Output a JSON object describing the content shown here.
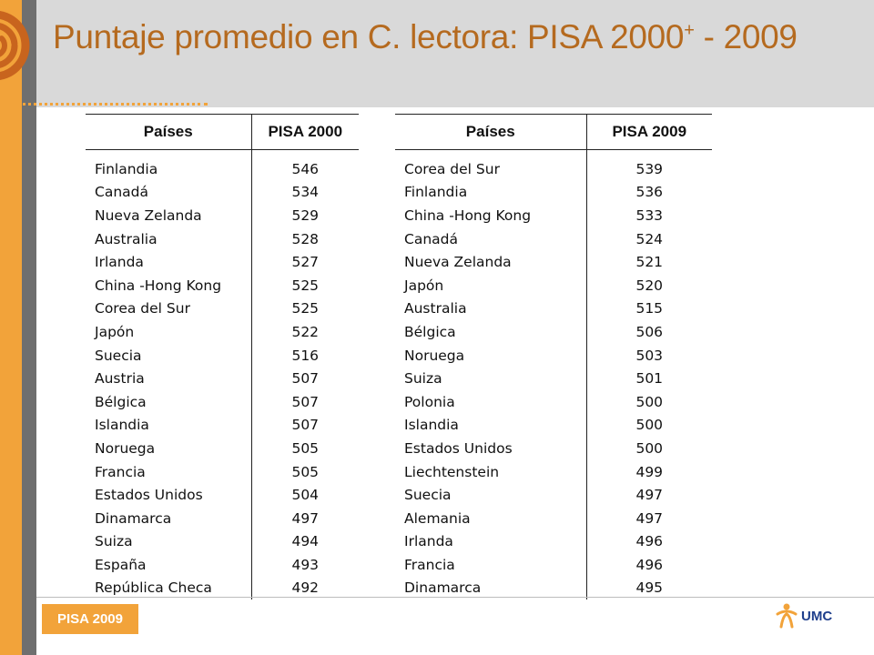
{
  "slide": {
    "title": "Puntaje promedio en C. lectora: PISA 2000",
    "title_sup": "+",
    "title_tail": " - 2009",
    "footer_label": "PISA 2009",
    "logo_text": "UMC"
  },
  "colors": {
    "accent_orange": "#f2a33a",
    "title_brown": "#b56a1f",
    "header_gray": "#d9d9d9",
    "side_gray": "#6f6f6f",
    "logo_blue": "#1f3f8c"
  },
  "icons": [
    "spiral-logo-icon",
    "umc-figure-icon"
  ],
  "table_2000": {
    "headers": [
      "Países",
      "PISA 2000"
    ],
    "rows": [
      [
        "Finlandia",
        "546"
      ],
      [
        "Canadá",
        "534"
      ],
      [
        "Nueva Zelanda",
        "529"
      ],
      [
        "Australia",
        "528"
      ],
      [
        "Irlanda",
        "527"
      ],
      [
        "China -Hong Kong",
        "525"
      ],
      [
        "Corea del Sur",
        "525"
      ],
      [
        "Japón",
        "522"
      ],
      [
        "Suecia",
        "516"
      ],
      [
        "Austria",
        "507"
      ],
      [
        "Bélgica",
        "507"
      ],
      [
        "Islandia",
        "507"
      ],
      [
        "Noruega",
        "505"
      ],
      [
        "Francia",
        "505"
      ],
      [
        "Estados Unidos",
        "504"
      ],
      [
        "Dinamarca",
        "497"
      ],
      [
        "Suiza",
        "494"
      ],
      [
        "España",
        "493"
      ],
      [
        "República Checa",
        "492"
      ]
    ]
  },
  "table_2009": {
    "headers": [
      "Países",
      "PISA 2009"
    ],
    "rows": [
      [
        "Corea del Sur",
        "539"
      ],
      [
        "Finlandia",
        "536"
      ],
      [
        "China -Hong Kong",
        "533"
      ],
      [
        "Canadá",
        "524"
      ],
      [
        "Nueva Zelanda",
        "521"
      ],
      [
        "Japón",
        "520"
      ],
      [
        "Australia",
        "515"
      ],
      [
        "Bélgica",
        "506"
      ],
      [
        "Noruega",
        "503"
      ],
      [
        "Suiza",
        "501"
      ],
      [
        "Polonia",
        "500"
      ],
      [
        "Islandia",
        "500"
      ],
      [
        "Estados Unidos",
        "500"
      ],
      [
        "Liechtenstein",
        "499"
      ],
      [
        "Suecia",
        "497"
      ],
      [
        "Alemania",
        "497"
      ],
      [
        "Irlanda",
        "496"
      ],
      [
        "Francia",
        "496"
      ],
      [
        "Dinamarca",
        "495"
      ]
    ]
  }
}
